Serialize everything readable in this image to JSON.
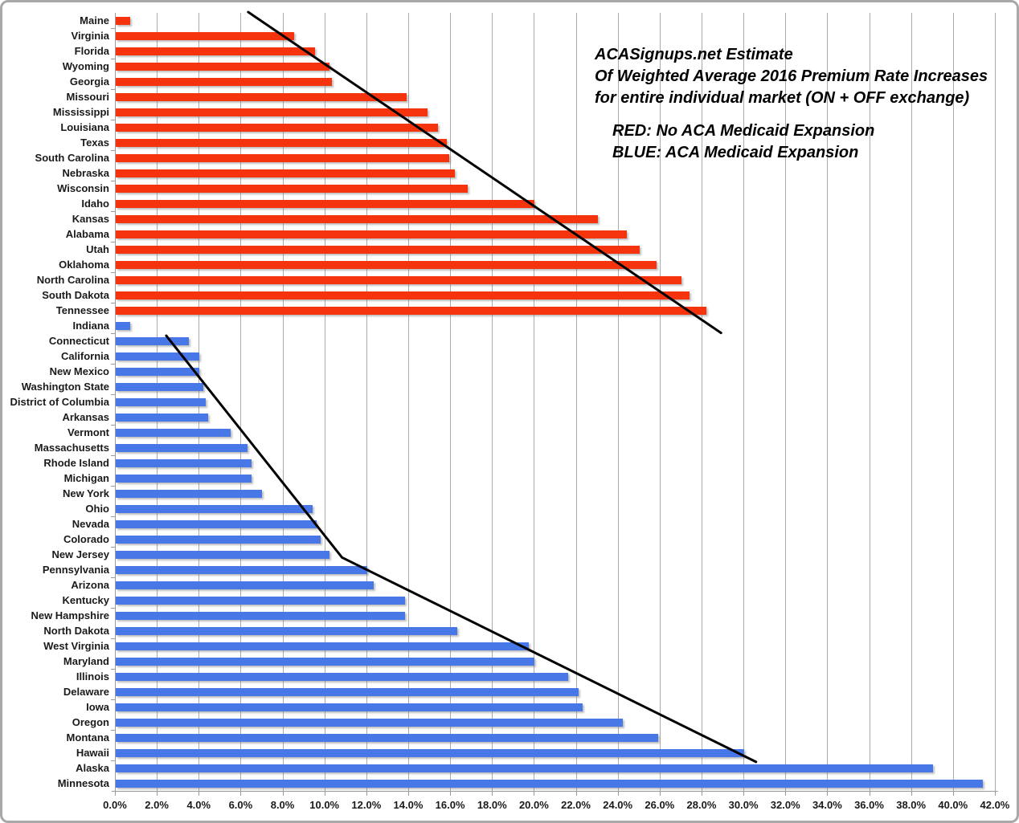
{
  "title": {
    "line1": "ACASignups.net Estimate",
    "line2": "Of Weighted Average 2016 Premium Rate Increases",
    "line3": "for entire individual market (ON + OFF exchange)"
  },
  "legend": {
    "red_label": "RED: No ACA Medicaid Expansion",
    "blue_label": "BLUE: ACA Medicaid Expansion"
  },
  "colors": {
    "red_bar": "#f5330d",
    "blue_bar": "#4878e8",
    "gridline": "#ababab",
    "trend_line": "#000000",
    "frame_border": "#a8a8a8",
    "text": "#000000"
  },
  "chart_data": {
    "type": "bar",
    "orientation": "horizontal",
    "title": "ACASignups.net Estimate Of Weighted Average 2016 Premium Rate Increases for entire individual market (ON + OFF exchange)",
    "xlabel": "",
    "ylabel": "",
    "grid": true,
    "x_axis": {
      "min": 0,
      "max": 42,
      "step": 2,
      "tick_suffix": "%",
      "tick_decimals": 1
    },
    "series": [
      {
        "name": "No ACA Medicaid Expansion",
        "color_key": "red_bar",
        "points": [
          {
            "label": "Maine",
            "value": 0.7
          },
          {
            "label": "Virginia",
            "value": 8.5
          },
          {
            "label": "Florida",
            "value": 9.5
          },
          {
            "label": "Wyoming",
            "value": 10.2
          },
          {
            "label": "Georgia",
            "value": 10.3
          },
          {
            "label": "Missouri",
            "value": 13.9
          },
          {
            "label": "Mississippi",
            "value": 14.9
          },
          {
            "label": "Louisiana",
            "value": 15.4
          },
          {
            "label": "Texas",
            "value": 15.8
          },
          {
            "label": "South Carolina",
            "value": 15.9
          },
          {
            "label": "Nebraska",
            "value": 16.2
          },
          {
            "label": "Wisconsin",
            "value": 16.8
          },
          {
            "label": "Idaho",
            "value": 20.0
          },
          {
            "label": "Kansas",
            "value": 23.0
          },
          {
            "label": "Alabama",
            "value": 24.4
          },
          {
            "label": "Utah",
            "value": 25.0
          },
          {
            "label": "Oklahoma",
            "value": 25.8
          },
          {
            "label": "North Carolina",
            "value": 27.0
          },
          {
            "label": "South Dakota",
            "value": 27.4
          },
          {
            "label": "Tennessee",
            "value": 28.2
          }
        ]
      },
      {
        "name": "ACA Medicaid Expansion",
        "color_key": "blue_bar",
        "points": [
          {
            "label": "Indiana",
            "value": 0.7
          },
          {
            "label": "Connecticut",
            "value": 3.5
          },
          {
            "label": "California",
            "value": 4.0
          },
          {
            "label": "New Mexico",
            "value": 4.0
          },
          {
            "label": "Washington State",
            "value": 4.2
          },
          {
            "label": "District of Columbia",
            "value": 4.3
          },
          {
            "label": "Arkansas",
            "value": 4.4
          },
          {
            "label": "Vermont",
            "value": 5.5
          },
          {
            "label": "Massachusetts",
            "value": 6.3
          },
          {
            "label": "Rhode Island",
            "value": 6.5
          },
          {
            "label": "Michigan",
            "value": 6.5
          },
          {
            "label": "New York",
            "value": 7.0
          },
          {
            "label": "Ohio",
            "value": 9.4
          },
          {
            "label": "Nevada",
            "value": 9.6
          },
          {
            "label": "Colorado",
            "value": 9.8
          },
          {
            "label": "New Jersey",
            "value": 10.2
          },
          {
            "label": "Pennsylvania",
            "value": 12.0
          },
          {
            "label": "Arizona",
            "value": 12.3
          },
          {
            "label": "Kentucky",
            "value": 13.8
          },
          {
            "label": "New Hampshire",
            "value": 13.8
          },
          {
            "label": "North Dakota",
            "value": 16.3
          },
          {
            "label": "West Virginia",
            "value": 19.7
          },
          {
            "label": "Maryland",
            "value": 20.0
          },
          {
            "label": "Illinois",
            "value": 21.6
          },
          {
            "label": "Delaware",
            "value": 22.1
          },
          {
            "label": "Iowa",
            "value": 22.3
          },
          {
            "label": "Oregon",
            "value": 24.2
          },
          {
            "label": "Montana",
            "value": 25.9
          },
          {
            "label": "Hawaii",
            "value": 30.0
          },
          {
            "label": "Alaska",
            "value": 39.0
          },
          {
            "label": "Minnesota",
            "value": 41.4
          }
        ]
      }
    ],
    "trend_lines": [
      {
        "name": "red-series-trend",
        "points_pct_row": [
          {
            "pct": 6.36,
            "row": -0.55
          },
          {
            "pct": 28.93,
            "row": 20.48
          }
        ]
      },
      {
        "name": "blue-series-trend",
        "points_pct_row": [
          {
            "pct": 2.45,
            "row": 20.66
          },
          {
            "pct": 10.84,
            "row": 35.2
          },
          {
            "pct": 30.6,
            "row": 48.6
          }
        ]
      }
    ]
  }
}
